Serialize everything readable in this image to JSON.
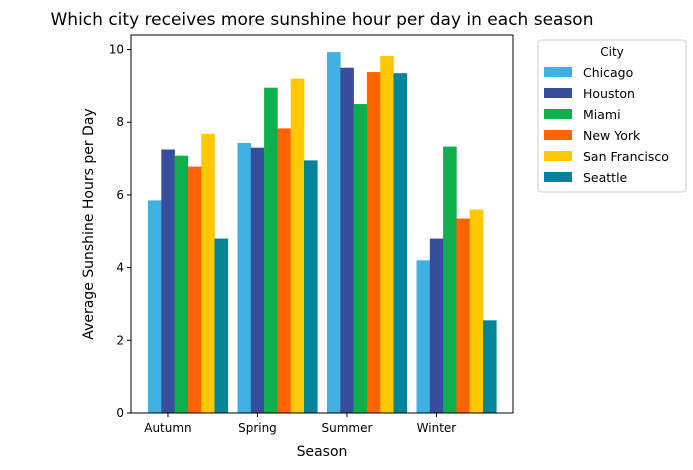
{
  "chart_data": {
    "type": "bar",
    "title": "Which city receives more sunshine hour per day in each season",
    "xlabel": "Season",
    "ylabel": "Average Sunshine Hours per Day",
    "categories": [
      "Autumn",
      "Spring",
      "Summer",
      "Winter"
    ],
    "ylim": [
      0,
      10.4
    ],
    "yticks": [
      0,
      2,
      4,
      6,
      8,
      10
    ],
    "grid": false,
    "legend": {
      "title": "City",
      "placement": "outside-top-right"
    },
    "series": [
      {
        "name": "Chicago",
        "color": "#41b1e3",
        "values": [
          5.85,
          7.43,
          9.93,
          4.2
        ]
      },
      {
        "name": "Houston",
        "color": "#374e9d",
        "values": [
          7.25,
          7.3,
          9.5,
          4.8
        ]
      },
      {
        "name": "Miami",
        "color": "#0db04b",
        "values": [
          7.08,
          8.95,
          8.5,
          7.33
        ]
      },
      {
        "name": "New York",
        "color": "#ff6302",
        "values": [
          6.78,
          7.83,
          9.38,
          5.35
        ]
      },
      {
        "name": "San Francisco",
        "color": "#ffc802",
        "values": [
          7.68,
          9.2,
          9.82,
          5.6
        ]
      },
      {
        "name": "Seattle",
        "color": "#04849b",
        "values": [
          4.8,
          6.95,
          9.35,
          2.55
        ]
      }
    ]
  }
}
